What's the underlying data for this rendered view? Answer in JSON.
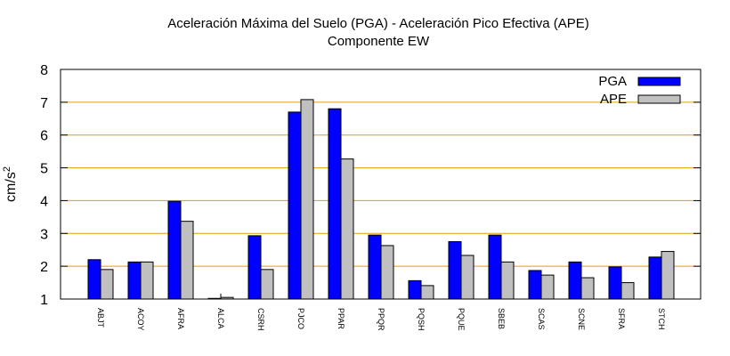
{
  "chart_data": {
    "type": "bar",
    "title": "Aceleración Máxima del Suelo (PGA) -  Aceleración Pico Efectiva (APE)",
    "subtitle": "Componente EW",
    "ylabel": "cm/s",
    "ylabel_sup": "2",
    "xlabel": "",
    "ylim": [
      1,
      8
    ],
    "yticks": [
      "1",
      "2",
      "3",
      "4",
      "5",
      "6",
      "7",
      "8"
    ],
    "grid": true,
    "grid_color": "#e0a000",
    "legend_position": "top-right",
    "categories": [
      "ABJT",
      "ACOY",
      "AFRA",
      "ALCA",
      "CSRH",
      "PJCO",
      "PPAR",
      "PPQR",
      "PQSH",
      "PQUE",
      "SBEB",
      "SCAS",
      "SCNE",
      "SFRA",
      "STCH"
    ],
    "series": [
      {
        "name": "PGA",
        "color": "#0000ff",
        "values": [
          2.2,
          2.13,
          3.98,
          1.02,
          2.93,
          6.7,
          6.8,
          2.95,
          1.56,
          2.75,
          2.95,
          1.87,
          2.13,
          1.98,
          2.28
        ]
      },
      {
        "name": "APE",
        "color": "#c0c0c0",
        "values": [
          1.9,
          2.13,
          3.37,
          1.05,
          1.9,
          7.08,
          5.27,
          2.63,
          1.41,
          2.33,
          2.13,
          1.73,
          1.65,
          1.5,
          2.45
        ]
      }
    ]
  }
}
